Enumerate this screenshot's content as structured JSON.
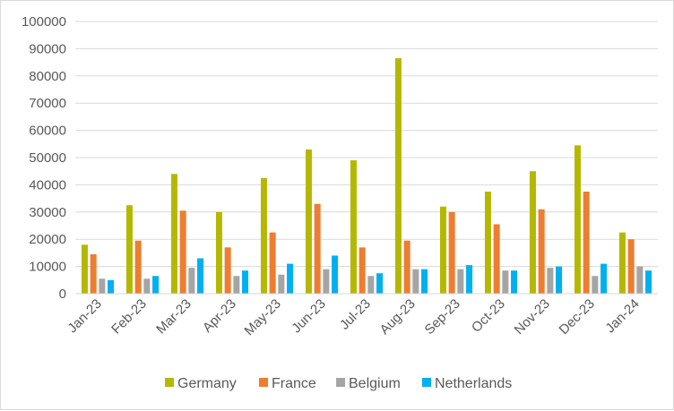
{
  "chart_data": {
    "type": "bar",
    "categories": [
      "Jan-23",
      "Feb-23",
      "Mar-23",
      "Apr-23",
      "May-23",
      "Jun-23",
      "Jul-23",
      "Aug-23",
      "Sep-23",
      "Oct-23",
      "Nov-23",
      "Dec-23",
      "Jan-24"
    ],
    "series": [
      {
        "name": "Germany",
        "color": "#b5b800",
        "values": [
          18000,
          32500,
          44000,
          30000,
          42500,
          53000,
          49000,
          86500,
          32000,
          37500,
          45000,
          54500,
          22500
        ]
      },
      {
        "name": "France",
        "color": "#ed7d31",
        "values": [
          14500,
          19500,
          30500,
          17000,
          22500,
          33000,
          17000,
          19500,
          30000,
          25500,
          31000,
          37500,
          20000
        ]
      },
      {
        "name": "Belgium",
        "color": "#a5a5a5",
        "values": [
          5500,
          5500,
          9500,
          6500,
          7000,
          9000,
          6500,
          9000,
          9000,
          8500,
          9500,
          6500,
          10000
        ]
      },
      {
        "name": "Netherlands",
        "color": "#00b0f0",
        "values": [
          5000,
          6500,
          13000,
          8500,
          11000,
          14000,
          7500,
          9000,
          10500,
          8500,
          10000,
          11000,
          8500
        ]
      }
    ],
    "yticks": [
      "0",
      "10000",
      "20000",
      "30000",
      "40000",
      "50000",
      "60000",
      "70000",
      "80000",
      "90000",
      "100000"
    ],
    "ylim": [
      0,
      100000
    ],
    "grid": true,
    "legend_position": "bottom",
    "title": "",
    "xlabel": "",
    "ylabel": ""
  }
}
